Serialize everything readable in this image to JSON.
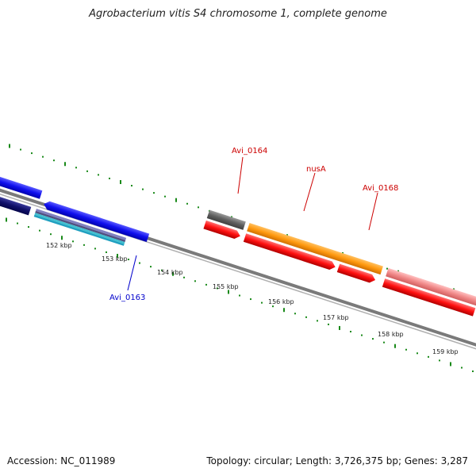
{
  "title": "Agrobacterium vitis S4 chromosome 1, complete genome",
  "footer": {
    "accession": "Accession: NC_011989",
    "topology": "Topology: circular; Length: 3,726,375 bp; Genes: 3,287"
  },
  "colors": {
    "backbone": "#808080",
    "tick_green": "#1a8a1a",
    "label_red": "#cc0000",
    "label_blue": "#0000cc"
  },
  "ticks": [
    {
      "label": "152 kbp"
    },
    {
      "label": "153 kbp"
    },
    {
      "label": "154 kbp"
    },
    {
      "label": "155 kbp"
    },
    {
      "label": "156 kbp"
    },
    {
      "label": "157 kbp"
    },
    {
      "label": "158 kbp"
    },
    {
      "label": "159 kbp"
    }
  ],
  "gene_labels": [
    {
      "id": "avi0164",
      "text": "Avi_0164",
      "color": "#cc0000"
    },
    {
      "id": "nusa",
      "text": "nusA",
      "color": "#cc0000"
    },
    {
      "id": "avi0168",
      "text": "Avi_0168",
      "color": "#cc0000"
    },
    {
      "id": "avi0163",
      "text": "Avi_0163",
      "color": "#0000cc"
    }
  ]
}
